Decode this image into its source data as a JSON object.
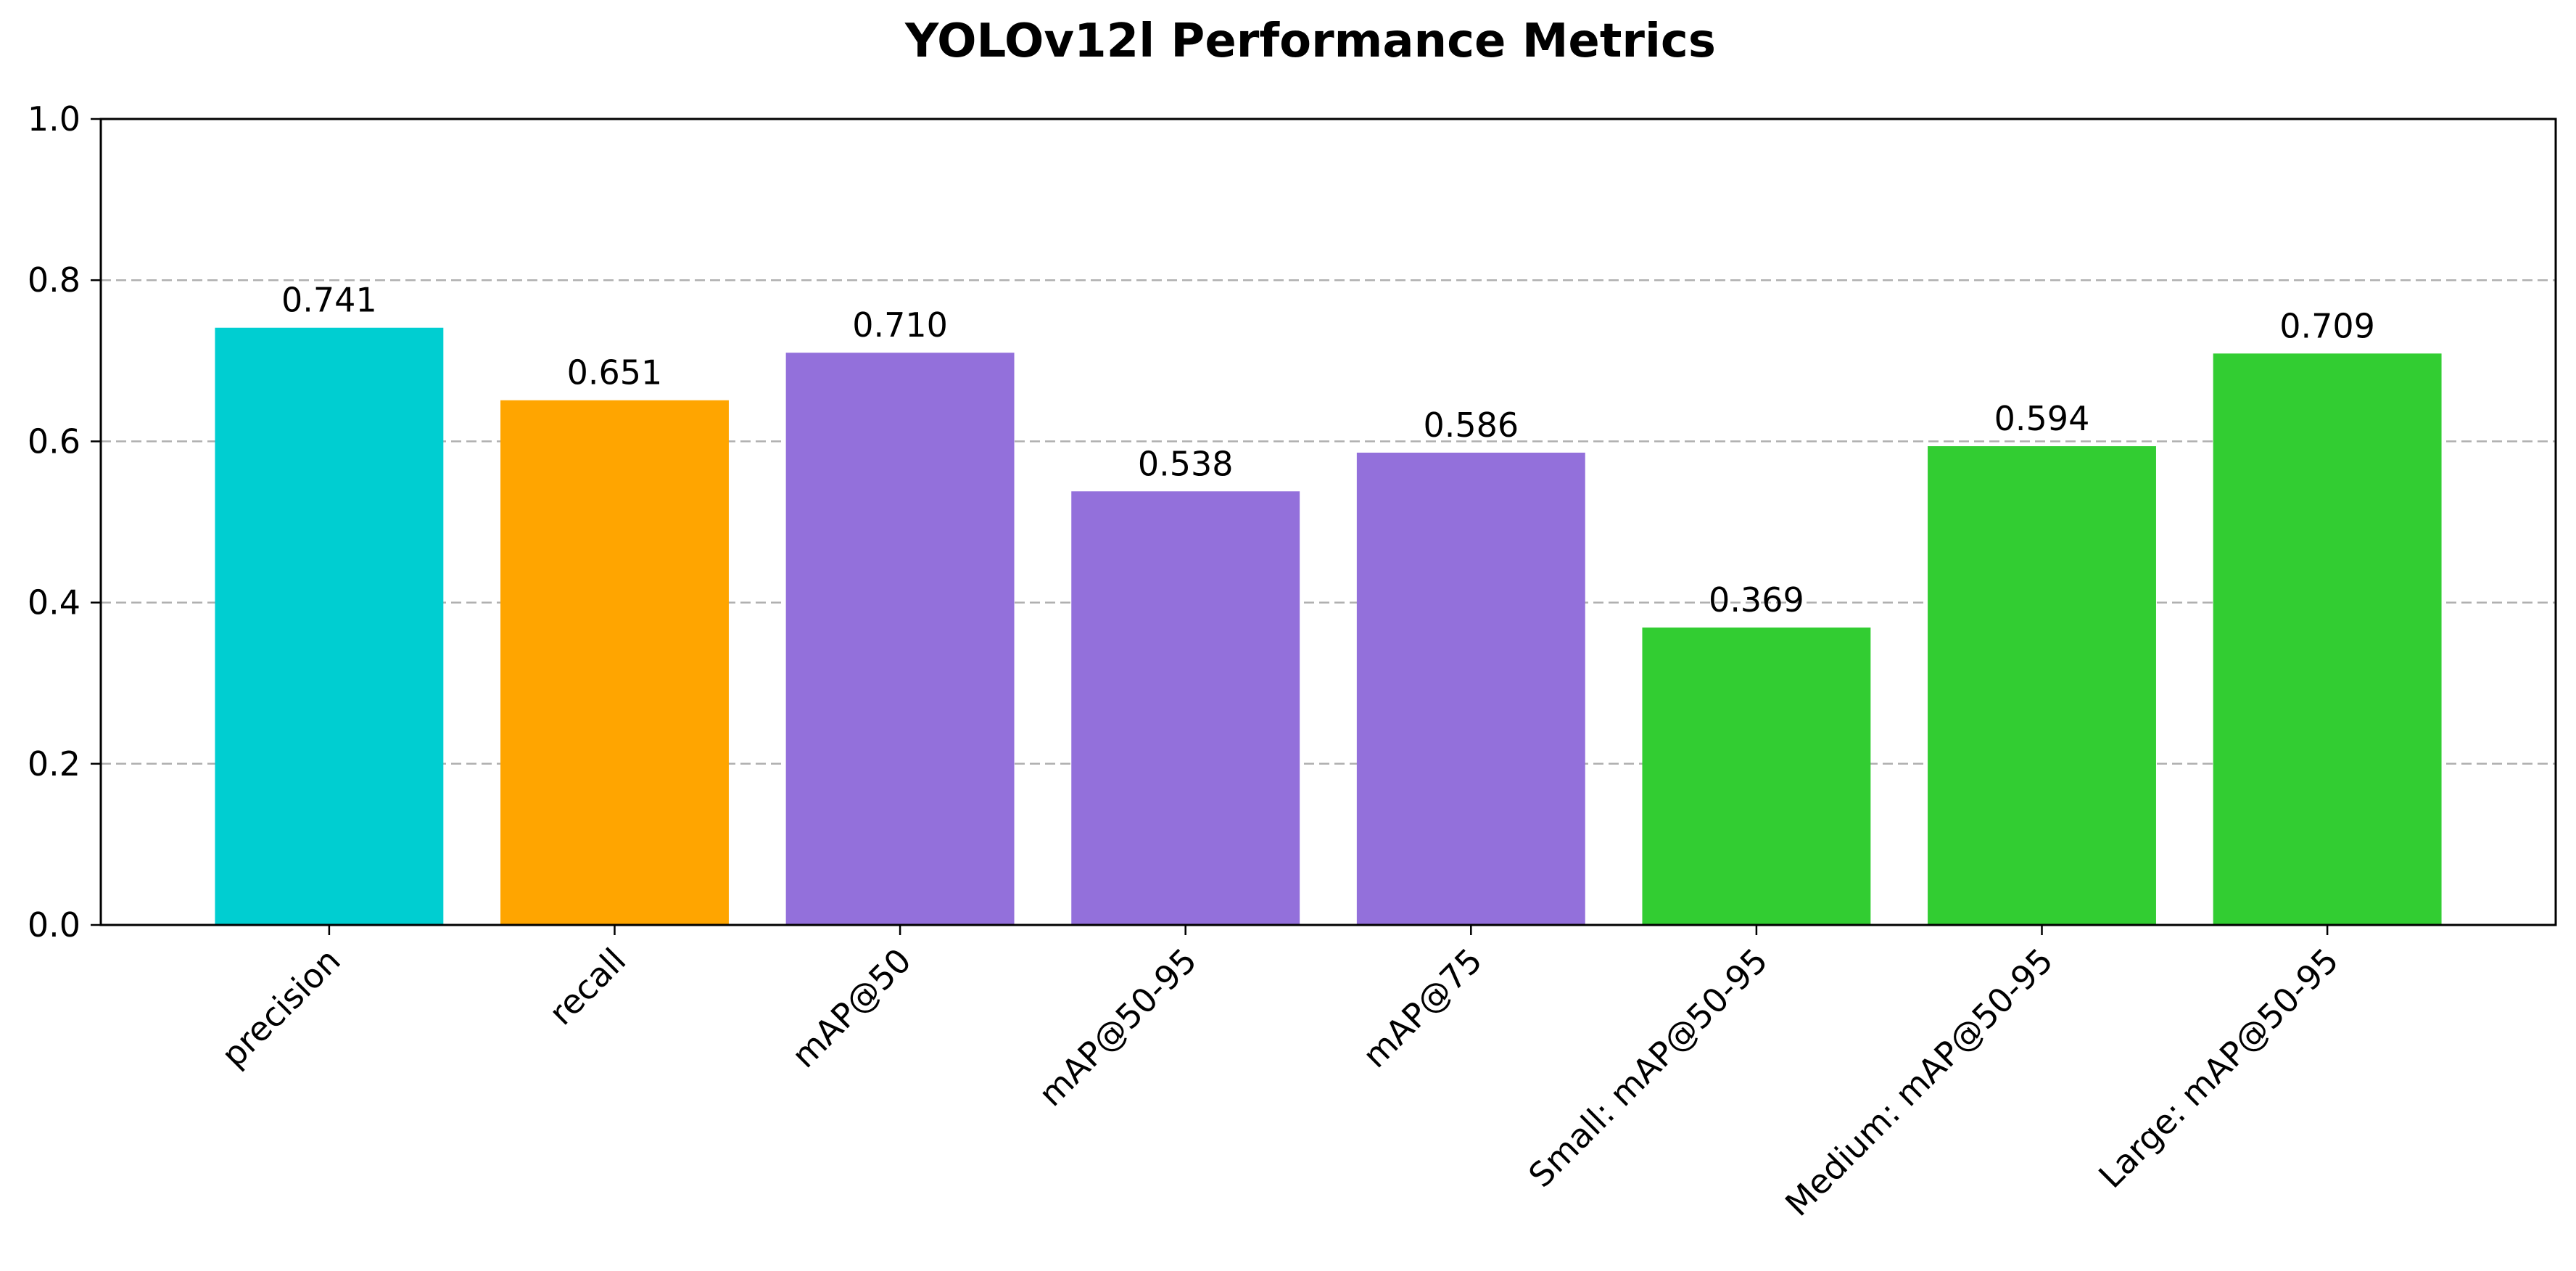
{
  "chart_data": {
    "type": "bar",
    "title": "YOLOv12l Performance Metrics",
    "xlabel": "",
    "ylabel": "",
    "categories": [
      "precision",
      "recall",
      "mAP@50",
      "mAP@50-95",
      "mAP@75",
      "Small: mAP@50-95",
      "Medium: mAP@50-95",
      "Large: mAP@50-95"
    ],
    "values": [
      0.741,
      0.651,
      0.71,
      0.538,
      0.586,
      0.369,
      0.594,
      0.709
    ],
    "value_labels": [
      "0.741",
      "0.651",
      "0.710",
      "0.538",
      "0.586",
      "0.369",
      "0.594",
      "0.709"
    ],
    "bar_colors": [
      "#00CED1",
      "#FFA500",
      "#9370DB",
      "#9370DB",
      "#9370DB",
      "#32CD32",
      "#32CD32",
      "#32CD32"
    ],
    "ylim": [
      0,
      1.0
    ],
    "yticks": [
      0.0,
      0.2,
      0.4,
      0.6,
      0.8,
      1.0
    ],
    "ytick_labels": [
      "0.0",
      "0.2",
      "0.4",
      "0.6",
      "0.8",
      "1.0"
    ],
    "grid": {
      "axis": "y",
      "style": "dashed",
      "color": "#b0b0b0"
    },
    "legend": "none"
  }
}
